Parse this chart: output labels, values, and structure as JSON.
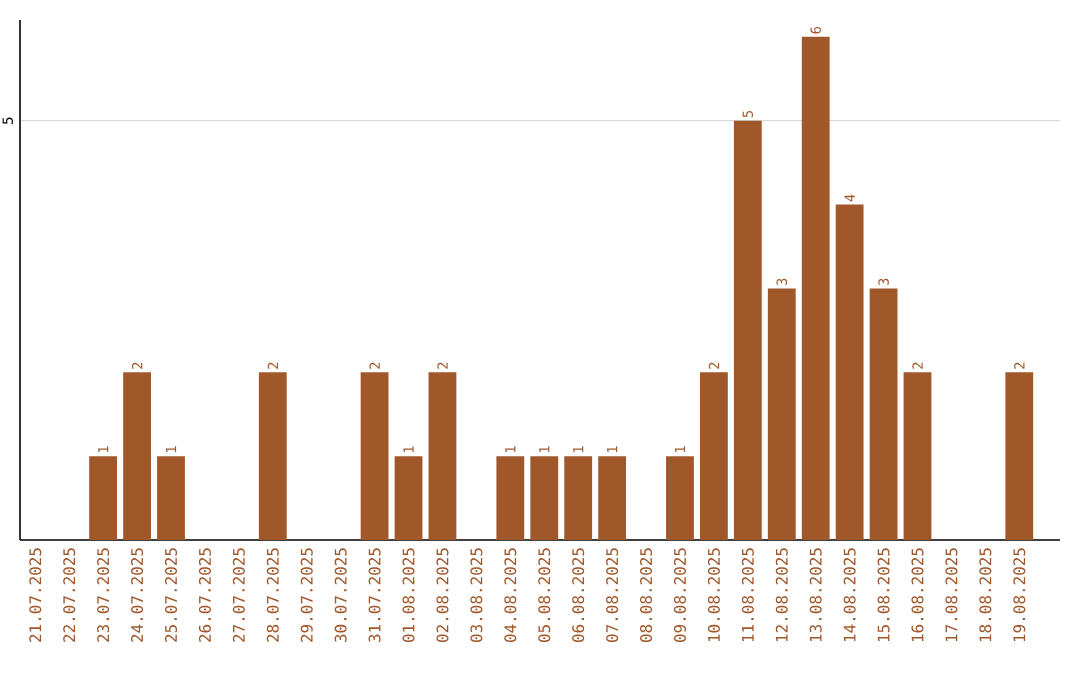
{
  "chart_data": {
    "type": "bar",
    "categories": [
      "21.07.2025",
      "22.07.2025",
      "23.07.2025",
      "24.07.2025",
      "25.07.2025",
      "26.07.2025",
      "27.07.2025",
      "28.07.2025",
      "29.07.2025",
      "30.07.2025",
      "31.07.2025",
      "01.08.2025",
      "02.08.2025",
      "03.08.2025",
      "04.08.2025",
      "05.08.2025",
      "06.08.2025",
      "07.08.2025",
      "08.08.2025",
      "09.08.2025",
      "10.08.2025",
      "11.08.2025",
      "12.08.2025",
      "13.08.2025",
      "14.08.2025",
      "15.08.2025",
      "16.08.2025",
      "17.08.2025",
      "18.08.2025",
      "19.08.2025"
    ],
    "values": [
      0,
      0,
      1,
      2,
      1,
      0,
      0,
      2,
      0,
      0,
      2,
      1,
      2,
      0,
      1,
      1,
      1,
      1,
      0,
      1,
      2,
      5,
      3,
      6,
      4,
      3,
      2,
      0,
      0,
      2
    ],
    "value_labels": [
      null,
      null,
      "1",
      "2",
      "1",
      null,
      null,
      "2",
      null,
      null,
      "2",
      "1",
      "2",
      null,
      "1",
      "1",
      "1",
      "1",
      null,
      "1",
      "2",
      "5",
      "3",
      "6",
      "4",
      "3",
      "2",
      null,
      null,
      "2"
    ],
    "color": "#a0572a",
    "ylim": [
      0,
      6.2
    ],
    "yticks": [
      5
    ],
    "grid": "y"
  }
}
